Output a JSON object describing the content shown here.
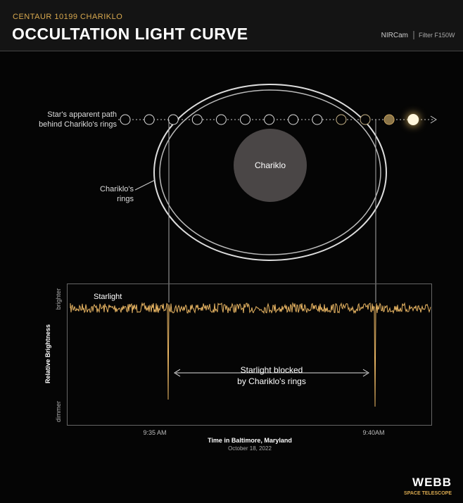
{
  "header": {
    "kicker": "CENTAUR 10199 CHARIKLO",
    "title": "OCCULTATION LIGHT CURVE",
    "instrument": "NIRCam",
    "filter": "Filter F150W"
  },
  "diagram": {
    "path_label": [
      "Star's apparent path",
      "behind Chariklo's rings"
    ],
    "rings_label": [
      "Chariklo's",
      "rings"
    ],
    "body_label": "Chariklo"
  },
  "plot": {
    "series_label": "Starlight",
    "blocked_label": [
      "Starlight blocked",
      "by Chariklo's rings"
    ],
    "y_title": "Relative Brightness",
    "y_high": "brighter",
    "y_low": "dimmer",
    "x_ticks": [
      "9:35 AM",
      "9:40AM"
    ],
    "x_title": "Time in Baltimore, Maryland",
    "date": "October 18, 2022"
  },
  "logo": {
    "name": "WEBB",
    "subtitle": "SPACE TELESCOPE"
  }
}
